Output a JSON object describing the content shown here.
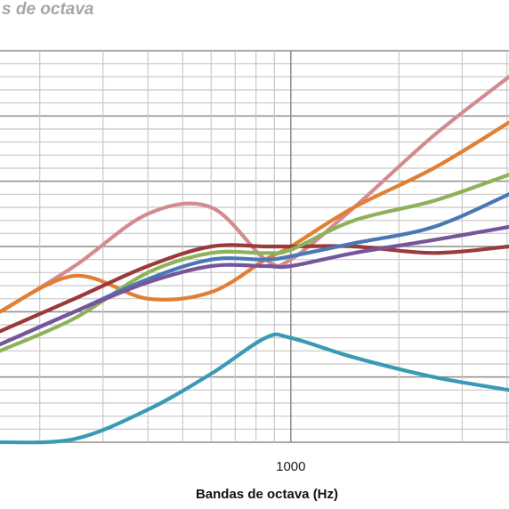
{
  "chart_data": {
    "type": "line",
    "title": "s de octava",
    "xlabel": "Bandas de octava (Hz)",
    "ylabel": "",
    "x_scale": "log",
    "xlim": [
      155,
      4050
    ],
    "ylim": [
      0,
      60
    ],
    "grid": true,
    "x_ticks": [
      {
        "value": 1000,
        "label": "1000"
      }
    ],
    "series": [
      {
        "color": "#d28c90",
        "x": [
          155,
          250,
          400,
          600,
          850,
          1000,
          1500,
          2500,
          4050
        ],
        "y": [
          20,
          27,
          35,
          36,
          28,
          28,
          36,
          47,
          56
        ]
      },
      {
        "color": "#e07f35",
        "x": [
          155,
          250,
          400,
          600,
          850,
          1000,
          1500,
          2500,
          4050
        ],
        "y": [
          20,
          25.5,
          22,
          23,
          28,
          30,
          36,
          42,
          49
        ]
      },
      {
        "color": "#9a3a3a",
        "x": [
          155,
          250,
          400,
          600,
          850,
          1000,
          1500,
          2500,
          4050
        ],
        "y": [
          17,
          22,
          27,
          30,
          30,
          30,
          30,
          29,
          30
        ]
      },
      {
        "color": "#8db35a",
        "x": [
          155,
          250,
          400,
          600,
          850,
          1000,
          1500,
          2500,
          4050
        ],
        "y": [
          14,
          19,
          26,
          29,
          29,
          29.5,
          34,
          37,
          41
        ]
      },
      {
        "color": "#4a78b5",
        "x": [
          155,
          250,
          400,
          600,
          850,
          1000,
          1500,
          2500,
          4050
        ],
        "y": [
          15,
          20,
          25,
          28,
          28,
          28.5,
          30.5,
          33,
          38
        ]
      },
      {
        "color": "#76559a",
        "x": [
          155,
          250,
          400,
          600,
          850,
          1000,
          1500,
          2500,
          4050
        ],
        "y": [
          15,
          20,
          24.5,
          27,
          27,
          27,
          29,
          31,
          33
        ]
      },
      {
        "color": "#3a9ab6",
        "x": [
          155,
          250,
          400,
          600,
          850,
          1000,
          1500,
          2500,
          4050
        ],
        "y": [
          0,
          0.5,
          5,
          10.5,
          16,
          16,
          13,
          10,
          8
        ]
      }
    ]
  }
}
